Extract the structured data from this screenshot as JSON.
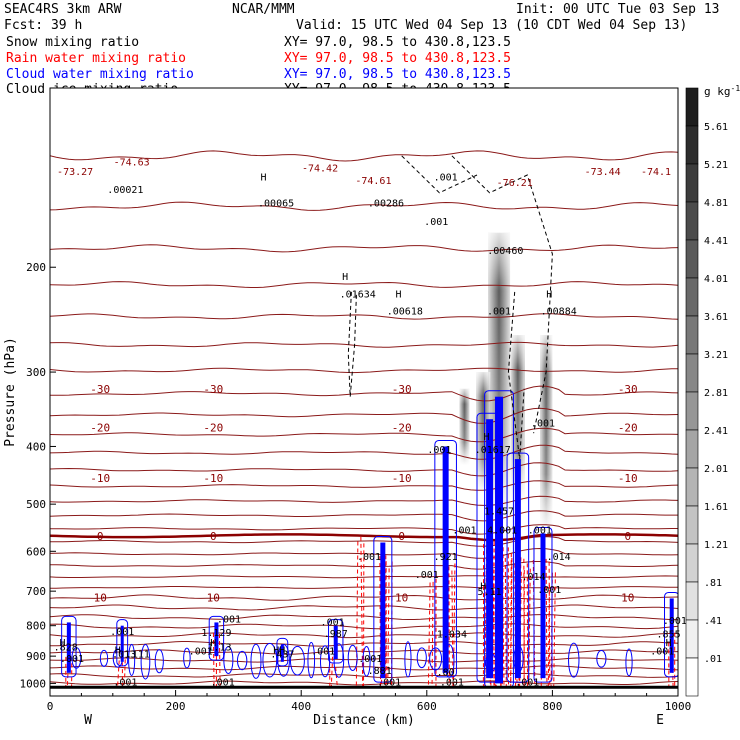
{
  "header": {
    "line1_left": "SEAC4RS  3km ARW",
    "line1_center": "NCAR/MMM",
    "line1_right": "Init: 00 UTC Tue 03 Sep 13",
    "line2_left": "Fcst:   39 h",
    "line2_right": "Valid: 15 UTC Wed 04 Sep 13 (10 CDT Wed 04 Sep 13)"
  },
  "fields": [
    {
      "label": "Snow mixing ratio",
      "xy": "XY=  97.0, 98.5 to 430.8,123.5",
      "color": "#000000"
    },
    {
      "label": "Rain water mixing ratio",
      "xy": "XY=  97.0, 98.5 to 430.8,123.5",
      "color": "#ff0000"
    },
    {
      "label": "Cloud water mixing ratio",
      "xy": "XY=  97.0, 98.5 to 430.8,123.5",
      "color": "#0000ff"
    },
    {
      "label": "Cloud ice mixing ratio",
      "xy": "XY=  97.0, 98.5 to 430.8,123.5",
      "color": "#000000"
    }
  ],
  "chart_data": {
    "type": "heatmap",
    "xlabel": "Distance (km)",
    "ylabel": "Pressure (hPa)",
    "xlim": [
      0,
      1000
    ],
    "ylim": [
      1050,
      100
    ],
    "x_ticks": [
      0,
      200,
      400,
      600,
      800,
      1000
    ],
    "y_ticks": [
      200,
      300,
      400,
      500,
      600,
      700,
      800,
      900,
      1000
    ],
    "x_end_labels": {
      "left": "W",
      "right": "E"
    },
    "colorbar": {
      "unit": "g kg",
      "unit_exp": "-1",
      "levels": [
        "5.61",
        "5.21",
        "4.81",
        "4.41",
        "4.01",
        "3.61",
        "3.21",
        "2.81",
        "2.41",
        "2.01",
        "1.61",
        "1.21",
        ".81",
        ".41",
        ".01"
      ]
    },
    "temperature_contours": [
      {
        "label": "-30",
        "p": 320
      },
      {
        "label": "-20",
        "p": 372
      },
      {
        "label": "-10",
        "p": 452
      },
      {
        "label": "0",
        "p": 565
      },
      {
        "label": "10",
        "p": 718
      }
    ],
    "contour_value_labels": [
      {
        "text": "-73.27",
        "x": 40,
        "p": 140
      },
      {
        "text": "-74.63",
        "x": 130,
        "p": 135
      },
      {
        "text": "-74.42",
        "x": 430,
        "p": 138
      },
      {
        "text": "-74.61",
        "x": 515,
        "p": 145
      },
      {
        "text": "-76.21",
        "x": 740,
        "p": 146
      },
      {
        "text": "-73.44",
        "x": 880,
        "p": 140
      },
      {
        "text": "-74.1",
        "x": 965,
        "p": 140
      },
      {
        "text": "H",
        "x": 340,
        "p": 143
      },
      {
        "text": ".00065",
        "x": 360,
        "p": 158
      },
      {
        "text": ".00021",
        "x": 120,
        "p": 150
      },
      {
        "text": ".00286",
        "x": 535,
        "p": 158
      },
      {
        "text": ".001",
        "x": 630,
        "p": 143
      },
      {
        "text": ".001",
        "x": 615,
        "p": 170
      },
      {
        "text": ".00460",
        "x": 725,
        "p": 190
      },
      {
        "text": "H",
        "x": 470,
        "p": 210
      },
      {
        "text": ".01634",
        "x": 490,
        "p": 225
      },
      {
        "text": "H",
        "x": 555,
        "p": 225
      },
      {
        "text": ".00618",
        "x": 565,
        "p": 240
      },
      {
        "text": "H",
        "x": 795,
        "p": 225
      },
      {
        "text": ".00884",
        "x": 810,
        "p": 240
      },
      {
        "text": ".001",
        "x": 715,
        "p": 240
      },
      {
        "text": ".001",
        "x": 785,
        "p": 370
      },
      {
        "text": "H",
        "x": 695,
        "p": 390
      },
      {
        "text": ".01617",
        "x": 705,
        "p": 410
      },
      {
        "text": ".001",
        "x": 620,
        "p": 410
      },
      {
        "text": "1.457",
        "x": 715,
        "p": 520
      },
      {
        "text": ".001",
        "x": 660,
        "p": 560
      },
      {
        "text": "4.001",
        "x": 720,
        "p": 560
      },
      {
        "text": ".001",
        "x": 780,
        "p": 560
      },
      {
        "text": ".001",
        "x": 508,
        "p": 620
      },
      {
        "text": ".921",
        "x": 630,
        "p": 620
      },
      {
        "text": ".014",
        "x": 810,
        "p": 620
      },
      {
        "text": ".001",
        "x": 600,
        "p": 665
      },
      {
        "text": ".014",
        "x": 770,
        "p": 670
      },
      {
        "text": ".001",
        "x": 795,
        "p": 705
      },
      {
        "text": "H",
        "x": 690,
        "p": 695
      },
      {
        "text": "5.11",
        "x": 700,
        "p": 710
      },
      {
        "text": ".001",
        "x": 285,
        "p": 790
      },
      {
        "text": ".001",
        "x": 450,
        "p": 800
      },
      {
        "text": ".001",
        "x": 115,
        "p": 830
      },
      {
        "text": "1.129",
        "x": 265,
        "p": 833
      },
      {
        "text": ".987",
        "x": 455,
        "p": 835
      },
      {
        "text": "1.034",
        "x": 640,
        "p": 838
      },
      {
        "text": ".001",
        "x": 995,
        "p": 795
      },
      {
        "text": ".855",
        "x": 985,
        "p": 838
      },
      {
        "text": "H",
        "x": 20,
        "p": 865
      },
      {
        "text": ".828",
        "x": 25,
        "p": 880
      },
      {
        "text": "H",
        "x": 260,
        "p": 865
      },
      {
        "text": "1.13",
        "x": 270,
        "p": 880
      },
      {
        "text": "H",
        "x": 985,
        "p": 865
      },
      {
        "text": "H",
        "x": 108,
        "p": 890
      },
      {
        "text": ".013",
        "x": 118,
        "p": 905
      },
      {
        "text": ".111",
        "x": 140,
        "p": 905
      },
      {
        "text": "HH",
        "x": 365,
        "p": 890
      },
      {
        "text": ".437",
        "x": 370,
        "p": 905
      },
      {
        "text": ".001",
        "x": 240,
        "p": 895
      },
      {
        "text": ".001",
        "x": 435,
        "p": 895
      },
      {
        "text": ".001",
        "x": 975,
        "p": 895
      },
      {
        "text": ".001",
        "x": 35,
        "p": 920
      },
      {
        "text": ".001",
        "x": 510,
        "p": 920
      },
      {
        "text": ".80",
        "x": 630,
        "p": 970
      },
      {
        "text": ".881",
        "x": 525,
        "p": 965
      },
      {
        "text": ".001",
        "x": 120,
        "p": 1008
      },
      {
        "text": ".001",
        "x": 275,
        "p": 1008
      },
      {
        "text": ".001",
        "x": 540,
        "p": 1008
      },
      {
        "text": ".001",
        "x": 640,
        "p": 1008
      },
      {
        "text": ".001",
        "x": 760,
        "p": 1008
      }
    ]
  }
}
